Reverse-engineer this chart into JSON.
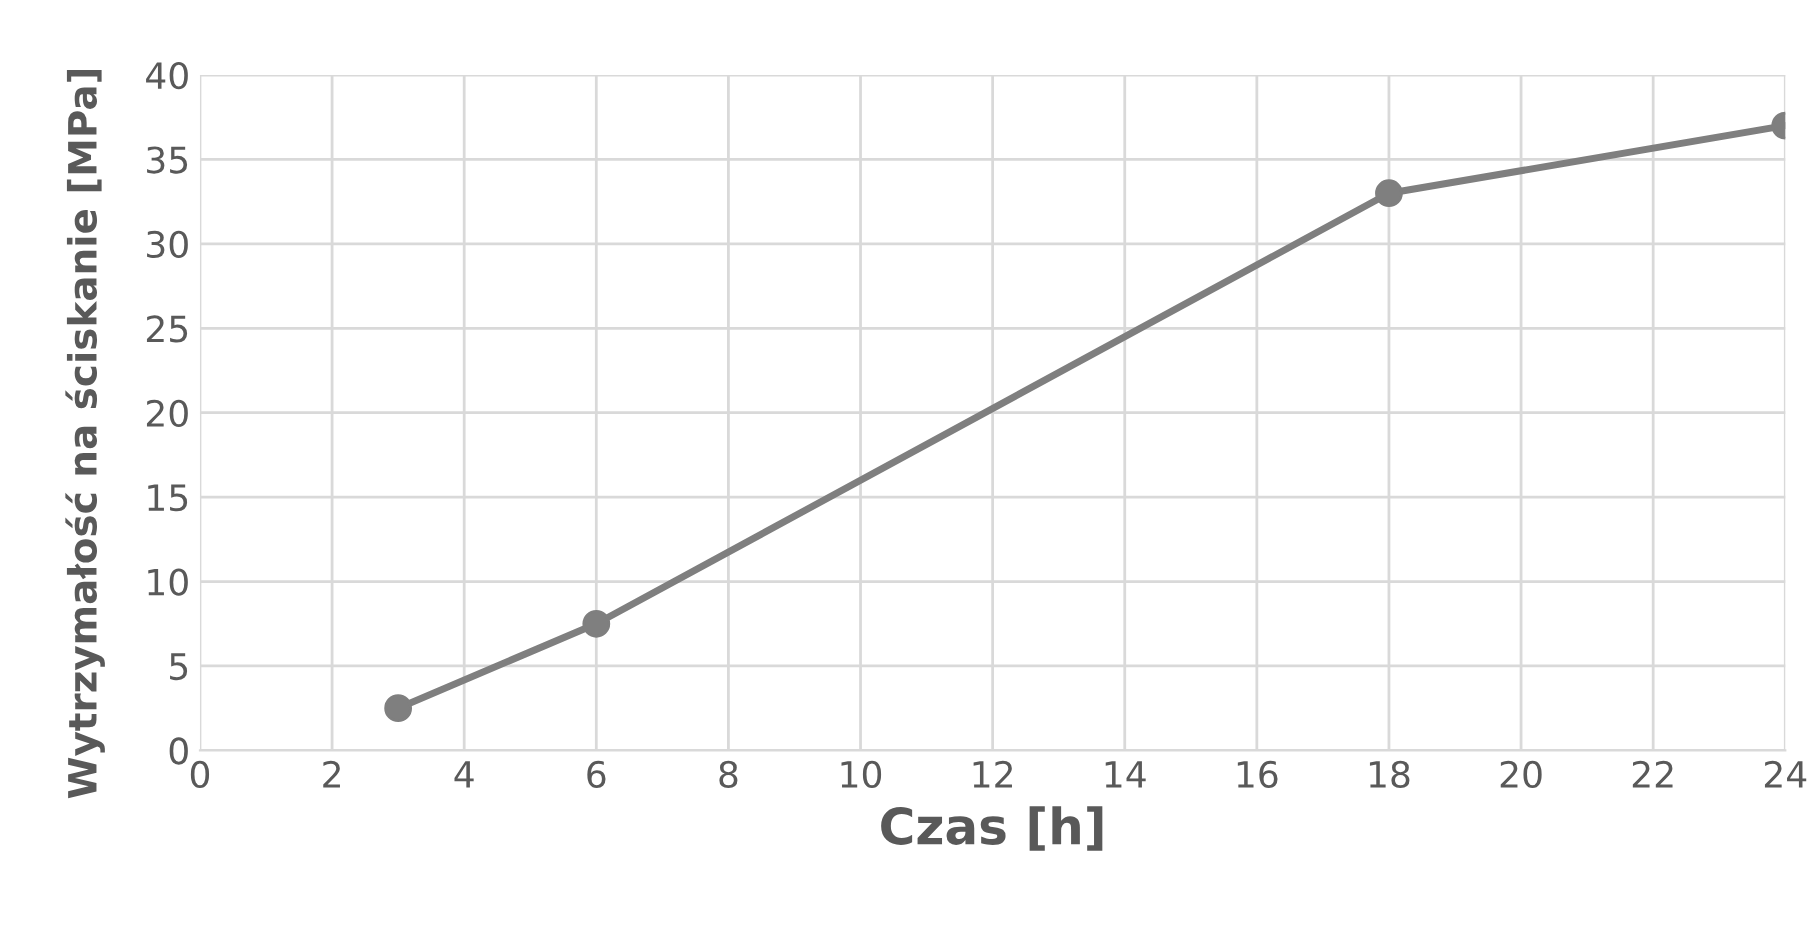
{
  "chart_data": {
    "type": "line",
    "xlabel": "Czas [h]",
    "ylabel": "Wytrzymałość na ściskanie [MPa]",
    "x": [
      3,
      6,
      18,
      24
    ],
    "series": [
      {
        "color": "#7f7f7f",
        "values": [
          2.5,
          7.5,
          33,
          37
        ]
      }
    ],
    "xlim": [
      0,
      24
    ],
    "xticks": [
      0,
      2,
      4,
      6,
      8,
      10,
      12,
      14,
      16,
      18,
      20,
      22,
      24
    ],
    "ylim": [
      0,
      40
    ],
    "yticks": [
      0,
      5,
      10,
      15,
      20,
      25,
      30,
      35,
      40
    ],
    "grid": true,
    "marker": "circle",
    "line_style": "solid"
  }
}
